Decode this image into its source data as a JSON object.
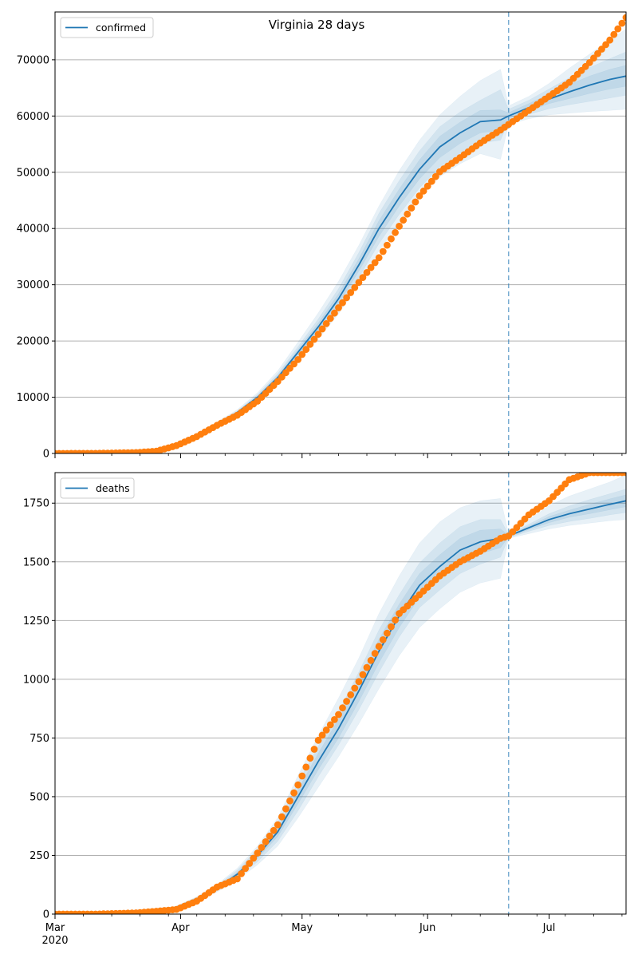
{
  "figure": {
    "title": "Virginia 28 days",
    "x_ticks": [
      {
        "label": "Mar",
        "date": "2020-03-01"
      },
      {
        "label": "Apr",
        "date": "2020-04-01"
      },
      {
        "label": "May",
        "date": "2020-05-01"
      },
      {
        "label": "Jun",
        "date": "2020-06-01"
      },
      {
        "label": "Jul",
        "date": "2020-07-01"
      }
    ],
    "x_year_label": "2020"
  },
  "colors": {
    "model": "#1f77b4",
    "observed": "#ff7f0e",
    "band": "#1f77b4",
    "cutoff": "#1f77b4",
    "grid": "#b0b0b0"
  },
  "chart_data": [
    {
      "type": "line",
      "xlim": [
        "2020-03-01",
        "2020-07-20"
      ],
      "ylim": [
        0,
        78500
      ],
      "y_ticks": [
        0,
        10000,
        20000,
        30000,
        40000,
        50000,
        60000,
        70000
      ],
      "grid": "horizontal",
      "legend": "top-left",
      "forecast_start": "2020-06-21",
      "series": [
        {
          "name": "confirmed",
          "kind": "model",
          "x": [
            "2020-03-01",
            "2020-03-11",
            "2020-03-21",
            "2020-03-26",
            "2020-03-31",
            "2020-04-05",
            "2020-04-10",
            "2020-04-15",
            "2020-04-20",
            "2020-04-25",
            "2020-04-30",
            "2020-05-05",
            "2020-05-10",
            "2020-05-15",
            "2020-05-20",
            "2020-05-25",
            "2020-05-30",
            "2020-06-04",
            "2020-06-09",
            "2020-06-14",
            "2020-06-19",
            "2020-06-21",
            "2020-06-26",
            "2020-07-01",
            "2020-07-06",
            "2020-07-11",
            "2020-07-16",
            "2020-07-20"
          ],
          "y": [
            50,
            120,
            300,
            700,
            1600,
            3200,
            5200,
            7300,
            10000,
            13500,
            18000,
            22500,
            27500,
            33500,
            40000,
            45500,
            50500,
            54500,
            57000,
            59000,
            59300,
            60000,
            61500,
            63000,
            64300,
            65500,
            66500,
            67100
          ],
          "bands": [
            {
              "lo": [
                50,
                110,
                270,
                620,
                1400,
                2900,
                4800,
                6900,
                9300,
                12400,
                16400,
                20400,
                24800,
                30200,
                36000,
                41000,
                45600,
                49200,
                51500,
                53300,
                52300,
                58500,
                59500,
                60200,
                60500,
                60800,
                61000,
                61200
              ],
              "hi": [
                50,
                130,
                330,
                780,
                1800,
                3500,
                5600,
                7800,
                10800,
                14700,
                19800,
                25000,
                30600,
                37000,
                44000,
                50300,
                55700,
                60200,
                63500,
                66300,
                68300,
                61800,
                63500,
                65800,
                68500,
                71000,
                73500,
                75500
              ]
            },
            {
              "lo": [
                50,
                113,
                280,
                650,
                1470,
                3000,
                4930,
                7040,
                9540,
                12800,
                17000,
                21100,
                25700,
                31300,
                37300,
                42500,
                47200,
                50900,
                53300,
                55200,
                55700,
                59000,
                60300,
                61300,
                62000,
                62600,
                63200,
                63700
              ],
              "hi": [
                50,
                127,
                320,
                750,
                1730,
                3400,
                5470,
                7560,
                10460,
                14200,
                19000,
                23900,
                29300,
                35700,
                42700,
                48500,
                53800,
                58100,
                60700,
                62800,
                64700,
                61200,
                62800,
                64800,
                66800,
                68600,
                70200,
                71400
              ]
            },
            {
              "lo": [
                50,
                116,
                290,
                675,
                1540,
                3100,
                5070,
                7180,
                9770,
                13150,
                17500,
                21800,
                26600,
                32400,
                38600,
                44000,
                48800,
                52600,
                55100,
                57000,
                57500,
                59500,
                60900,
                62200,
                63100,
                64000,
                64800,
                65300
              ],
              "hi": [
                50,
                124,
                310,
                725,
                1660,
                3300,
                5330,
                7420,
                10230,
                13850,
                18500,
                23200,
                28400,
                34600,
                41400,
                47000,
                52200,
                56400,
                58900,
                61000,
                61100,
                60600,
                62200,
                63900,
                65600,
                67100,
                68300,
                69000
              ]
            }
          ]
        },
        {
          "name": "",
          "kind": "observed",
          "x": [
            "2020-03-01",
            "2020-03-11",
            "2020-03-21",
            "2020-03-26",
            "2020-03-31",
            "2020-04-05",
            "2020-04-10",
            "2020-04-15",
            "2020-04-20",
            "2020-04-25",
            "2020-04-30",
            "2020-05-05",
            "2020-05-10",
            "2020-05-15",
            "2020-05-20",
            "2020-05-25",
            "2020-05-30",
            "2020-06-04",
            "2020-06-09",
            "2020-06-14",
            "2020-06-19",
            "2020-06-21",
            "2020-06-26",
            "2020-07-01",
            "2020-07-06",
            "2020-07-11",
            "2020-07-16",
            "2020-07-20"
          ],
          "y": [
            0,
            20,
            150,
            400,
            1400,
            3000,
            5000,
            6800,
            9300,
            12800,
            16700,
            21200,
            25900,
            30400,
            34800,
            40400,
            45800,
            50100,
            52600,
            55200,
            57500,
            58500,
            61000,
            63500,
            66000,
            69500,
            73500,
            77500
          ]
        }
      ]
    },
    {
      "type": "line",
      "xlim": [
        "2020-03-01",
        "2020-07-20"
      ],
      "ylim": [
        0,
        1880
      ],
      "y_ticks": [
        0,
        250,
        500,
        750,
        1000,
        1250,
        1500,
        1750
      ],
      "grid": "horizontal",
      "legend": "top-left",
      "forecast_start": "2020-06-21",
      "series": [
        {
          "name": "deaths",
          "kind": "model",
          "x": [
            "2020-03-01",
            "2020-03-11",
            "2020-03-21",
            "2020-03-26",
            "2020-03-31",
            "2020-04-05",
            "2020-04-10",
            "2020-04-15",
            "2020-04-20",
            "2020-04-25",
            "2020-04-30",
            "2020-05-05",
            "2020-05-10",
            "2020-05-15",
            "2020-05-20",
            "2020-05-25",
            "2020-05-30",
            "2020-06-04",
            "2020-06-09",
            "2020-06-14",
            "2020-06-19",
            "2020-06-21",
            "2020-06-26",
            "2020-07-01",
            "2020-07-06",
            "2020-07-11",
            "2020-07-16",
            "2020-07-20"
          ],
          "y": [
            0,
            1,
            5,
            12,
            30,
            65,
            110,
            170,
            250,
            350,
            500,
            650,
            790,
            950,
            1120,
            1270,
            1400,
            1480,
            1550,
            1585,
            1600,
            1610,
            1645,
            1680,
            1705,
            1725,
            1745,
            1760
          ],
          "bands": [
            {
              "lo": [
                0,
                1,
                4,
                10,
                26,
                56,
                94,
                145,
                210,
                290,
                410,
                540,
                670,
                810,
                960,
                1100,
                1220,
                1300,
                1370,
                1410,
                1430,
                1600,
                1620,
                1640,
                1655,
                1665,
                1675,
                1680
              ],
              "hi": [
                0,
                1,
                6,
                14,
                34,
                74,
                126,
                195,
                290,
                410,
                590,
                760,
                920,
                1090,
                1280,
                1440,
                1580,
                1670,
                1730,
                1760,
                1770,
                1620,
                1680,
                1740,
                1780,
                1810,
                1840,
                1870
              ]
            },
            {
              "lo": [
                0,
                1,
                4,
                11,
                27,
                59,
                99,
                153,
                223,
                310,
                440,
                585,
                720,
                870,
                1030,
                1180,
                1305,
                1380,
                1450,
                1490,
                1520,
                1603,
                1630,
                1655,
                1672,
                1685,
                1700,
                1710
              ],
              "hi": [
                0,
                1,
                6,
                13,
                33,
                71,
                121,
                187,
                277,
                390,
                560,
                715,
                860,
                1030,
                1210,
                1360,
                1495,
                1580,
                1650,
                1680,
                1680,
                1617,
                1660,
                1705,
                1738,
                1765,
                1790,
                1810
              ]
            },
            {
              "lo": [
                0,
                1,
                4.5,
                11.5,
                28.5,
                62,
                104,
                162,
                237,
                330,
                470,
                615,
                750,
                905,
                1070,
                1220,
                1350,
                1430,
                1500,
                1535,
                1560,
                1606,
                1638,
                1667,
                1690,
                1705,
                1722,
                1735
              ],
              "hi": [
                0,
                1,
                5.5,
                12.5,
                31.5,
                68,
                116,
                178,
                263,
                370,
                530,
                685,
                830,
                995,
                1170,
                1320,
                1450,
                1530,
                1600,
                1635,
                1640,
                1614,
                1652,
                1693,
                1720,
                1745,
                1768,
                1785
              ]
            }
          ]
        },
        {
          "name": "",
          "kind": "observed",
          "x": [
            "2020-03-01",
            "2020-03-11",
            "2020-03-21",
            "2020-03-26",
            "2020-03-31",
            "2020-04-05",
            "2020-04-10",
            "2020-04-15",
            "2020-04-20",
            "2020-04-25",
            "2020-04-30",
            "2020-05-05",
            "2020-05-10",
            "2020-05-15",
            "2020-05-20",
            "2020-05-25",
            "2020-05-30",
            "2020-06-04",
            "2020-06-09",
            "2020-06-14",
            "2020-06-19",
            "2020-06-21",
            "2020-06-26",
            "2020-07-01",
            "2020-07-06",
            "2020-07-11",
            "2020-07-16",
            "2020-07-20"
          ],
          "y": [
            0,
            0,
            5,
            12,
            20,
            55,
            115,
            150,
            260,
            380,
            550,
            740,
            850,
            990,
            1140,
            1280,
            1360,
            1440,
            1500,
            1545,
            1600,
            1610,
            1700,
            1760,
            1850,
            1880,
            1880,
            1880
          ]
        }
      ]
    }
  ]
}
